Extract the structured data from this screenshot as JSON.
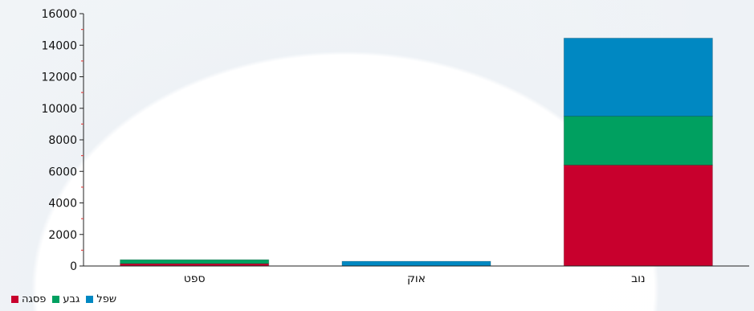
{
  "chart_data": {
    "type": "bar",
    "stacked": true,
    "categories": [
      "ספט",
      "אוק",
      "נוב"
    ],
    "series": [
      {
        "name": "פסגה",
        "color": "#c8002d",
        "values": [
          150,
          0,
          6400
        ]
      },
      {
        "name": "גבע",
        "color": "#00a060",
        "values": [
          250,
          0,
          3100
        ]
      },
      {
        "name": "שפל",
        "color": "#0088c2",
        "values": [
          0,
          300,
          4950
        ]
      }
    ],
    "title": "",
    "xlabel": "",
    "ylabel": "",
    "ylim": [
      0,
      16000
    ],
    "yticks": [
      0,
      2000,
      4000,
      6000,
      8000,
      10000,
      12000,
      14000,
      16000
    ],
    "grid": false,
    "legend_position": "bottom-left"
  }
}
